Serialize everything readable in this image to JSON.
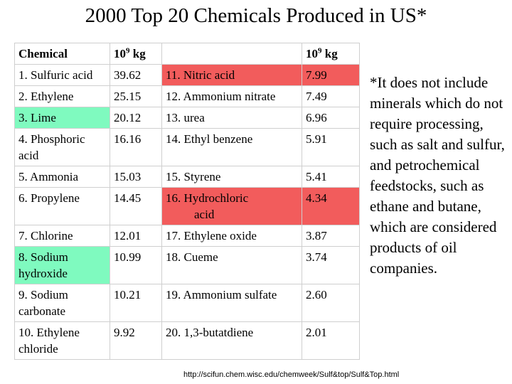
{
  "title": "2000 Top 20 Chemicals Produced in US*",
  "table": {
    "header": {
      "col1": "Chemical",
      "unit_base": "10",
      "unit_exp": "9",
      "unit_suffix": " kg",
      "col3": ""
    },
    "rows": [
      {
        "left_name": "1. Sulfuric acid",
        "left_value": "39.62",
        "right_name": "11.  Nitric acid",
        "right_value": "7.99"
      },
      {
        "left_name": "2. Ethylene",
        "left_value": "25.15",
        "right_name": "12. Ammonium nitrate",
        "right_value": "7.49"
      },
      {
        "left_name": "3. Lime",
        "left_value": "20.12",
        "right_name": "13. urea",
        "right_value": "6.96"
      },
      {
        "left_name": "4. Phosphoric acid",
        "left_value": "16.16",
        "right_name": "14. Ethyl benzene",
        "right_value": "5.91"
      },
      {
        "left_name": "5. Ammonia",
        "left_value": "15.03",
        "right_name": "15.  Styrene",
        "right_value": "5.41"
      },
      {
        "left_name": "6. Propylene",
        "left_value": "14.45",
        "right_name_line1": "16.  Hydrochloric",
        "right_name_line2": "acid",
        "right_value": "4.34"
      },
      {
        "left_name": "7. Chlorine",
        "left_value": "12.01",
        "right_name": "17.  Ethylene oxide",
        "right_value": "3.87"
      },
      {
        "left_name": "8.  Sodium hydroxide",
        "left_value": "10.99",
        "right_name": "18.  Cueme",
        "right_value": "3.74"
      },
      {
        "left_name": "9. Sodium carbonate",
        "left_value": "10.21",
        "right_name": "19. Ammonium sulfate",
        "right_value": "2.60"
      },
      {
        "left_name": "10. Ethylene chloride",
        "left_value": "9.92",
        "right_name": "20. 1,3-butatdiene",
        "right_value": "2.01"
      }
    ],
    "colors": {
      "green": "#7ffabf",
      "red": "#f25c5c"
    }
  },
  "note": "*It does not include minerals which do not require processing, such as salt and sulfur, and petrochemical feedstocks, such as ethane and butane, which are considered products of oil companies.",
  "source_url": "http://scifun.chem.wisc.edu/chemweek/Sulf&top/Sulf&Top.html"
}
